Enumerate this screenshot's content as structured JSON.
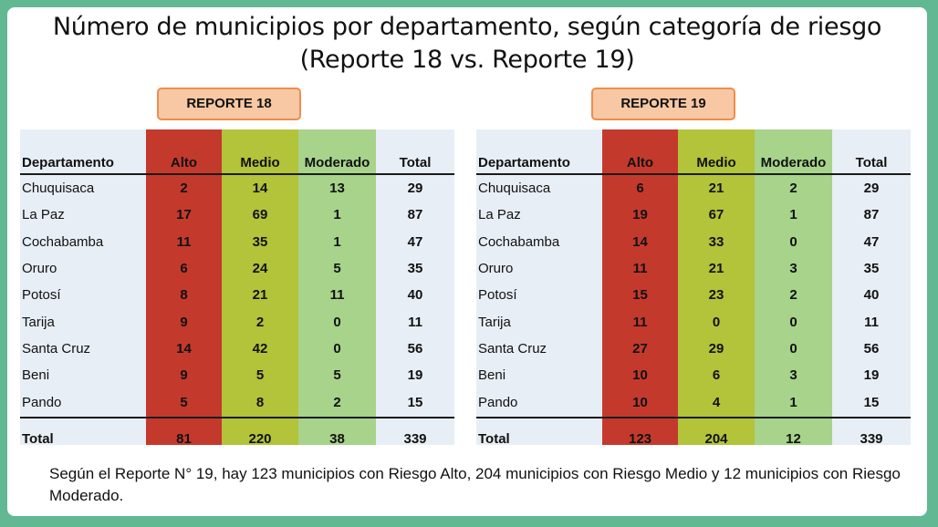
{
  "title_line1": "Número de municipios por departamento, según categoría de riesgo",
  "title_line2": "(Reporte 18 vs. Reporte 19)",
  "columns": [
    "Departamento",
    "Alto",
    "Medio",
    "Moderado",
    "Total"
  ],
  "colors": {
    "alto": "#c33a2d",
    "medio": "#b3c33a",
    "moderado": "#a7d38b",
    "label_bg": "#f7c8a3",
    "label_border": "#ee8d4c",
    "frame": "#62b893"
  },
  "reports": [
    {
      "label": "REPORTE 18",
      "rows": [
        {
          "dept": "Chuquisaca",
          "alto": "2",
          "medio": "14",
          "moderado": "13",
          "total": "29"
        },
        {
          "dept": "La Paz",
          "alto": "17",
          "medio": "69",
          "moderado": "1",
          "total": "87"
        },
        {
          "dept": "Cochabamba",
          "alto": "11",
          "medio": "35",
          "moderado": "1",
          "total": "47"
        },
        {
          "dept": "Oruro",
          "alto": "6",
          "medio": "24",
          "moderado": "5",
          "total": "35"
        },
        {
          "dept": "Potosí",
          "alto": "8",
          "medio": "21",
          "moderado": "11",
          "total": "40"
        },
        {
          "dept": "Tarija",
          "alto": "9",
          "medio": "2",
          "moderado": "0",
          "total": "11"
        },
        {
          "dept": "Santa Cruz",
          "alto": "14",
          "medio": "42",
          "moderado": "0",
          "total": "56"
        },
        {
          "dept": "Beni",
          "alto": "9",
          "medio": "5",
          "moderado": "5",
          "total": "19"
        },
        {
          "dept": "Pando",
          "alto": "5",
          "medio": "8",
          "moderado": "2",
          "total": "15"
        }
      ],
      "total": {
        "dept": "Total",
        "alto": "81",
        "medio": "220",
        "moderado": "38",
        "total": "339"
      }
    },
    {
      "label": "REPORTE 19",
      "rows": [
        {
          "dept": "Chuquisaca",
          "alto": "6",
          "medio": "21",
          "moderado": "2",
          "total": "29"
        },
        {
          "dept": "La Paz",
          "alto": "19",
          "medio": "67",
          "moderado": "1",
          "total": "87"
        },
        {
          "dept": "Cochabamba",
          "alto": "14",
          "medio": "33",
          "moderado": "0",
          "total": "47"
        },
        {
          "dept": "Oruro",
          "alto": "11",
          "medio": "21",
          "moderado": "3",
          "total": "35"
        },
        {
          "dept": "Potosí",
          "alto": "15",
          "medio": "23",
          "moderado": "2",
          "total": "40"
        },
        {
          "dept": "Tarija",
          "alto": "11",
          "medio": "0",
          "moderado": "0",
          "total": "11"
        },
        {
          "dept": "Santa Cruz",
          "alto": "27",
          "medio": "29",
          "moderado": "0",
          "total": "56"
        },
        {
          "dept": "Beni",
          "alto": "10",
          "medio": "6",
          "moderado": "3",
          "total": "19"
        },
        {
          "dept": "Pando",
          "alto": "10",
          "medio": "4",
          "moderado": "1",
          "total": "15"
        }
      ],
      "total": {
        "dept": "Total",
        "alto": "123",
        "medio": "204",
        "moderado": "12",
        "total": "339"
      }
    }
  ],
  "footer": "Según el Reporte N° 19, hay 123 municipios con Riesgo Alto, 204 municipios con Riesgo Medio y 12 municipios con Riesgo Moderado."
}
